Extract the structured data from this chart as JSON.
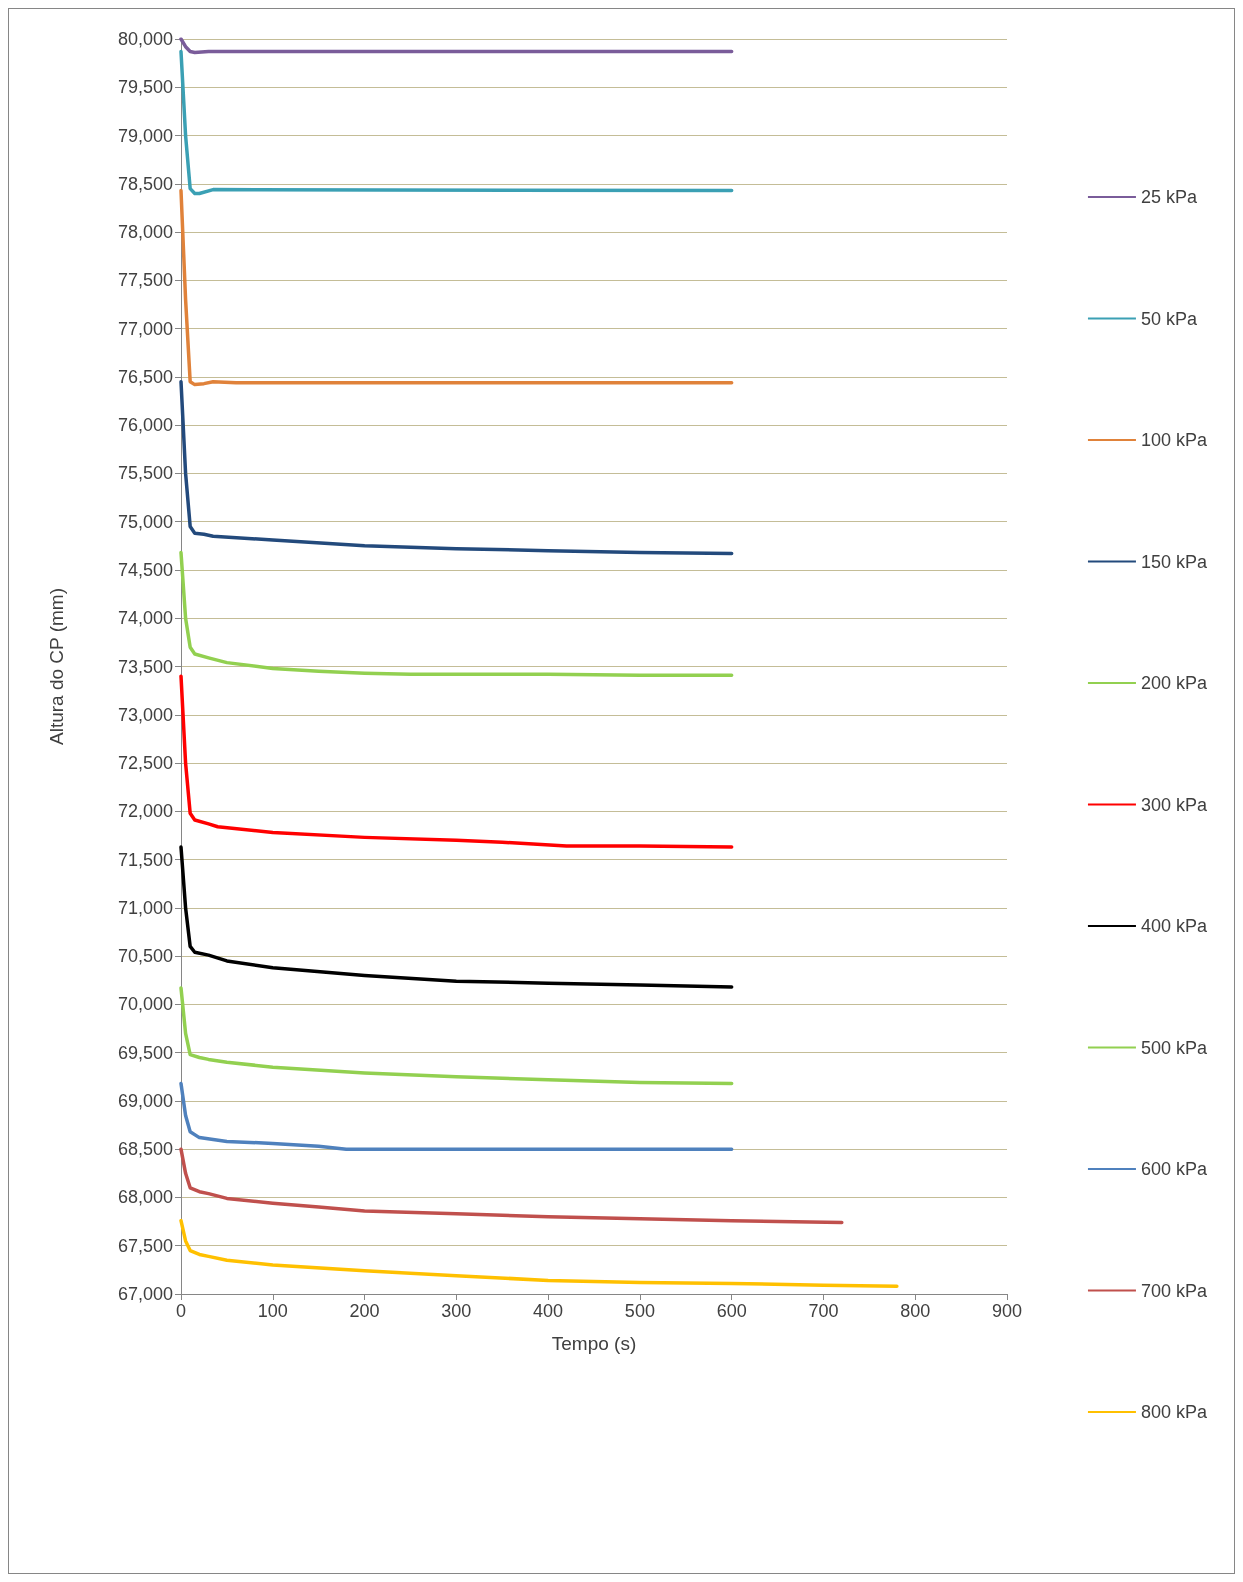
{
  "chart_data": {
    "type": "line",
    "xlabel": "Tempo (s)",
    "ylabel": "Altura do CP (mm)",
    "xlim": [
      0,
      900
    ],
    "xticks": [
      0,
      100,
      200,
      300,
      400,
      500,
      600,
      700,
      800,
      900
    ],
    "ylim": [
      67000,
      80000
    ],
    "yticks": [
      {
        "value": 67000,
        "label": "67,000"
      },
      {
        "value": 67500,
        "label": "67,500"
      },
      {
        "value": 68000,
        "label": "68,000"
      },
      {
        "value": 68500,
        "label": "68,500"
      },
      {
        "value": 69000,
        "label": "69,000"
      },
      {
        "value": 69500,
        "label": "69,500"
      },
      {
        "value": 70000,
        "label": "70,000"
      },
      {
        "value": 70500,
        "label": "70,500"
      },
      {
        "value": 71000,
        "label": "71,000"
      },
      {
        "value": 71500,
        "label": "71,500"
      },
      {
        "value": 72000,
        "label": "72,000"
      },
      {
        "value": 72500,
        "label": "72,500"
      },
      {
        "value": 73000,
        "label": "73,000"
      },
      {
        "value": 73500,
        "label": "73,500"
      },
      {
        "value": 74000,
        "label": "74,000"
      },
      {
        "value": 74500,
        "label": "74,500"
      },
      {
        "value": 75000,
        "label": "75,000"
      },
      {
        "value": 75500,
        "label": "75,500"
      },
      {
        "value": 76000,
        "label": "76,000"
      },
      {
        "value": 76500,
        "label": "76,500"
      },
      {
        "value": 77000,
        "label": "77,000"
      },
      {
        "value": 77500,
        "label": "77,500"
      },
      {
        "value": 78000,
        "label": "78,000"
      },
      {
        "value": 78500,
        "label": "78,500"
      },
      {
        "value": 79000,
        "label": "79,000"
      },
      {
        "value": 79500,
        "label": "79,500"
      },
      {
        "value": 80000,
        "label": "80,000"
      }
    ],
    "grid": "y",
    "legend": "right",
    "marker": "none",
    "line_style": "solid",
    "series": [
      {
        "name": "25 kPa",
        "color": "#7a5c9a",
        "x": [
          0,
          5,
          10,
          15,
          30,
          600
        ],
        "values": [
          80000,
          79920,
          79870,
          79860,
          79870,
          79870
        ]
      },
      {
        "name": "50 kPa",
        "color": "#3ba0b4",
        "x": [
          0,
          5,
          10,
          15,
          20,
          35,
          600
        ],
        "values": [
          79870,
          79000,
          78450,
          78400,
          78400,
          78440,
          78430
        ]
      },
      {
        "name": "100 kPa",
        "color": "#e0823a",
        "x": [
          0,
          5,
          10,
          15,
          25,
          35,
          60,
          600
        ],
        "values": [
          78430,
          77300,
          76450,
          76420,
          76430,
          76450,
          76440,
          76440
        ]
      },
      {
        "name": "150 kPa",
        "color": "#234a7c",
        "x": [
          0,
          5,
          10,
          15,
          25,
          35,
          100,
          200,
          300,
          400,
          500,
          600
        ],
        "values": [
          76450,
          75500,
          74950,
          74880,
          74870,
          74850,
          74810,
          74750,
          74720,
          74700,
          74680,
          74670
        ]
      },
      {
        "name": "200 kPa",
        "color": "#92d050",
        "x": [
          0,
          5,
          10,
          15,
          30,
          50,
          100,
          150,
          200,
          250,
          400,
          500,
          600
        ],
        "values": [
          74680,
          74000,
          73700,
          73630,
          73590,
          73540,
          73480,
          73450,
          73430,
          73420,
          73420,
          73410,
          73410
        ]
      },
      {
        "name": "300 kPa",
        "color": "#ff0000",
        "x": [
          0,
          5,
          10,
          15,
          30,
          40,
          100,
          200,
          300,
          350,
          420,
          500,
          600
        ],
        "values": [
          73400,
          72500,
          71980,
          71910,
          71870,
          71840,
          71780,
          71730,
          71700,
          71680,
          71640,
          71640,
          71630
        ]
      },
      {
        "name": "400 kPa",
        "color": "#000000",
        "x": [
          0,
          5,
          10,
          15,
          30,
          50,
          100,
          200,
          300,
          400,
          500,
          600
        ],
        "values": [
          71630,
          71000,
          70600,
          70540,
          70510,
          70450,
          70380,
          70300,
          70240,
          70220,
          70200,
          70180
        ]
      },
      {
        "name": "500 kPa",
        "color": "#92d050",
        "x": [
          0,
          5,
          10,
          20,
          30,
          50,
          100,
          200,
          300,
          400,
          500,
          600
        ],
        "values": [
          70170,
          69700,
          69480,
          69450,
          69430,
          69400,
          69350,
          69290,
          69250,
          69220,
          69190,
          69180
        ]
      },
      {
        "name": "600 kPa",
        "color": "#4f81bd",
        "x": [
          0,
          5,
          10,
          20,
          50,
          100,
          150,
          180,
          600
        ],
        "values": [
          69180,
          68850,
          68680,
          68620,
          68580,
          68560,
          68530,
          68500,
          68500
        ]
      },
      {
        "name": "700 kPa",
        "color": "#c0504d",
        "x": [
          0,
          5,
          10,
          20,
          30,
          50,
          100,
          150,
          200,
          300,
          400,
          500,
          600,
          720
        ],
        "values": [
          68500,
          68250,
          68100,
          68060,
          68040,
          67990,
          67940,
          67900,
          67860,
          67830,
          67800,
          67780,
          67760,
          67740
        ]
      },
      {
        "name": "800 kPa",
        "color": "#ffc000",
        "x": [
          0,
          5,
          10,
          20,
          30,
          50,
          100,
          200,
          300,
          400,
          500,
          600,
          700,
          780
        ],
        "values": [
          67760,
          67550,
          67450,
          67410,
          67390,
          67350,
          67300,
          67240,
          67190,
          67140,
          67120,
          67110,
          67090,
          67080
        ]
      }
    ]
  }
}
